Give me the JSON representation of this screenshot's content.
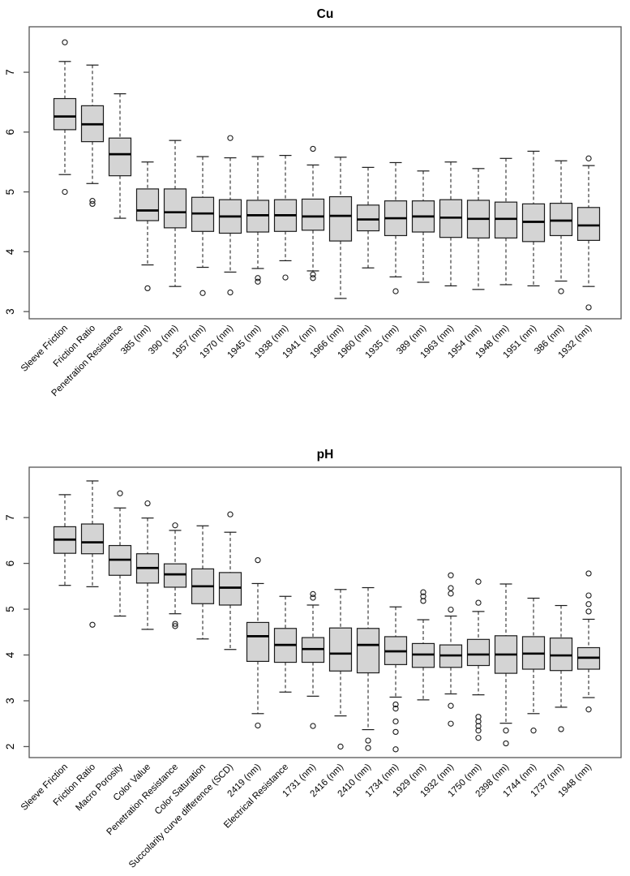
{
  "colors": {
    "background": "#ffffff",
    "box_fill": "#d4d4d4",
    "box_border": "#1c1c1c",
    "median": "#000000",
    "whisker": "#2b2b2b",
    "frame": "#555555",
    "text": "#000000"
  },
  "chart_data": [
    {
      "type": "boxplot",
      "title": "Cu",
      "xlabel": "",
      "ylabel": "",
      "grid": false,
      "legend": null,
      "ylim": [
        2.88,
        7.76
      ],
      "yticks": [
        3,
        4,
        5,
        6,
        7
      ],
      "categories": [
        "Sleeve Friction",
        "Friction Ratio",
        "Penetration Resistance",
        "385 (nm)",
        "390 (nm)",
        "1957 (nm)",
        "1970 (nm)",
        "1945 (nm)",
        "1938 (nm)",
        "1941 (nm)",
        "1966 (nm)",
        "1960 (nm)",
        "1935 (nm)",
        "389 (nm)",
        "1963 (nm)",
        "1954 (nm)",
        "1948 (nm)",
        "1951 (nm)",
        "386 (nm)",
        "1932 (nm)"
      ],
      "boxes": [
        {
          "whislo": 5.29,
          "q1": 6.04,
          "med": 6.26,
          "q3": 6.56,
          "whishi": 7.18,
          "outliers": [
            7.5,
            5.0
          ]
        },
        {
          "whislo": 5.14,
          "q1": 5.84,
          "med": 6.13,
          "q3": 6.44,
          "whishi": 7.12,
          "outliers": [
            4.85,
            4.8
          ]
        },
        {
          "whislo": 4.56,
          "q1": 5.27,
          "med": 5.63,
          "q3": 5.9,
          "whishi": 6.64,
          "outliers": []
        },
        {
          "whislo": 3.78,
          "q1": 4.52,
          "med": 4.69,
          "q3": 5.05,
          "whishi": 5.5,
          "outliers": [
            3.39
          ]
        },
        {
          "whislo": 3.42,
          "q1": 4.4,
          "med": 4.66,
          "q3": 5.05,
          "whishi": 5.86,
          "outliers": []
        },
        {
          "whislo": 3.74,
          "q1": 4.34,
          "med": 4.64,
          "q3": 4.91,
          "whishi": 5.59,
          "outliers": [
            3.31
          ]
        },
        {
          "whislo": 3.66,
          "q1": 4.31,
          "med": 4.59,
          "q3": 4.87,
          "whishi": 5.57,
          "outliers": [
            5.9,
            3.32
          ]
        },
        {
          "whislo": 3.72,
          "q1": 4.33,
          "med": 4.61,
          "q3": 4.86,
          "whishi": 5.59,
          "outliers": [
            3.56,
            3.5
          ]
        },
        {
          "whislo": 3.85,
          "q1": 4.34,
          "med": 4.61,
          "q3": 4.87,
          "whishi": 5.61,
          "outliers": [
            3.57
          ]
        },
        {
          "whislo": 3.68,
          "q1": 4.36,
          "med": 4.59,
          "q3": 4.88,
          "whishi": 5.45,
          "outliers": [
            5.72,
            3.62,
            3.56
          ]
        },
        {
          "whislo": 3.22,
          "q1": 4.18,
          "med": 4.6,
          "q3": 4.92,
          "whishi": 5.58,
          "outliers": []
        },
        {
          "whislo": 3.73,
          "q1": 4.35,
          "med": 4.54,
          "q3": 4.78,
          "whishi": 5.41,
          "outliers": []
        },
        {
          "whislo": 3.58,
          "q1": 4.27,
          "med": 4.56,
          "q3": 4.85,
          "whishi": 5.49,
          "outliers": [
            3.34
          ]
        },
        {
          "whislo": 3.49,
          "q1": 4.33,
          "med": 4.59,
          "q3": 4.85,
          "whishi": 5.35,
          "outliers": []
        },
        {
          "whislo": 3.43,
          "q1": 4.24,
          "med": 4.57,
          "q3": 4.87,
          "whishi": 5.5,
          "outliers": []
        },
        {
          "whislo": 3.37,
          "q1": 4.23,
          "med": 4.55,
          "q3": 4.86,
          "whishi": 5.39,
          "outliers": []
        },
        {
          "whislo": 3.45,
          "q1": 4.23,
          "med": 4.55,
          "q3": 4.83,
          "whishi": 5.56,
          "outliers": []
        },
        {
          "whislo": 3.43,
          "q1": 4.17,
          "med": 4.5,
          "q3": 4.8,
          "whishi": 5.68,
          "outliers": []
        },
        {
          "whislo": 3.51,
          "q1": 4.27,
          "med": 4.52,
          "q3": 4.81,
          "whishi": 5.52,
          "outliers": [
            3.34
          ]
        },
        {
          "whislo": 3.42,
          "q1": 4.19,
          "med": 4.44,
          "q3": 4.74,
          "whishi": 5.44,
          "outliers": [
            5.56,
            3.07
          ]
        }
      ]
    },
    {
      "type": "boxplot",
      "title": "pH",
      "xlabel": "",
      "ylabel": "",
      "grid": false,
      "legend": null,
      "ylim": [
        1.76,
        8.1
      ],
      "yticks": [
        2,
        3,
        4,
        5,
        6,
        7
      ],
      "categories": [
        "Sleeve Friction",
        "Friction Ratio",
        "Macro Porosity",
        "Color Value",
        "Penetration Resistance",
        "Color Saturation",
        "Succolarity curve difference (SCD)",
        "2419 (nm)",
        "Electrical Resistance",
        "1731 (nm)",
        "2416 (nm)",
        "2410 (nm)",
        "1734 (nm)",
        "1929 (nm)",
        "1932 (nm)",
        "1750 (nm)",
        "2398 (nm)",
        "1744 (nm)",
        "1737 (nm)",
        "1948 (nm)"
      ],
      "boxes": [
        {
          "whislo": 5.52,
          "q1": 6.22,
          "med": 6.52,
          "q3": 6.8,
          "whishi": 7.5,
          "outliers": []
        },
        {
          "whislo": 5.49,
          "q1": 6.21,
          "med": 6.46,
          "q3": 6.86,
          "whishi": 7.8,
          "outliers": [
            4.66
          ]
        },
        {
          "whislo": 4.85,
          "q1": 5.74,
          "med": 6.08,
          "q3": 6.39,
          "whishi": 7.21,
          "outliers": [
            7.53
          ]
        },
        {
          "whislo": 4.56,
          "q1": 5.57,
          "med": 5.9,
          "q3": 6.21,
          "whishi": 6.99,
          "outliers": [
            7.31
          ]
        },
        {
          "whislo": 4.9,
          "q1": 5.48,
          "med": 5.76,
          "q3": 5.99,
          "whishi": 6.72,
          "outliers": [
            6.83,
            4.68,
            4.63
          ]
        },
        {
          "whislo": 4.35,
          "q1": 5.12,
          "med": 5.5,
          "q3": 5.88,
          "whishi": 6.82,
          "outliers": []
        },
        {
          "whislo": 4.12,
          "q1": 5.09,
          "med": 5.47,
          "q3": 5.8,
          "whishi": 6.68,
          "outliers": [
            7.07
          ]
        },
        {
          "whislo": 2.72,
          "q1": 3.86,
          "med": 4.41,
          "q3": 4.71,
          "whishi": 5.56,
          "outliers": [
            6.07,
            2.46
          ]
        },
        {
          "whislo": 3.19,
          "q1": 3.84,
          "med": 4.22,
          "q3": 4.58,
          "whishi": 5.28,
          "outliers": []
        },
        {
          "whislo": 3.1,
          "q1": 3.84,
          "med": 4.13,
          "q3": 4.38,
          "whishi": 5.09,
          "outliers": [
            5.33,
            5.25,
            2.45
          ]
        },
        {
          "whislo": 2.67,
          "q1": 3.65,
          "med": 4.03,
          "q3": 4.59,
          "whishi": 5.43,
          "outliers": [
            2.0
          ]
        },
        {
          "whislo": 2.37,
          "q1": 3.61,
          "med": 4.22,
          "q3": 4.58,
          "whishi": 5.47,
          "outliers": [
            2.13,
            1.97
          ]
        },
        {
          "whislo": 3.08,
          "q1": 3.79,
          "med": 4.08,
          "q3": 4.4,
          "whishi": 5.05,
          "outliers": [
            2.92,
            2.83,
            2.55,
            2.32,
            1.94
          ]
        },
        {
          "whislo": 3.02,
          "q1": 3.73,
          "med": 4.01,
          "q3": 4.25,
          "whishi": 4.77,
          "outliers": [
            5.37,
            5.28,
            5.18
          ]
        },
        {
          "whislo": 3.15,
          "q1": 3.73,
          "med": 3.99,
          "q3": 4.22,
          "whishi": 4.85,
          "outliers": [
            5.74,
            5.46,
            5.34,
            4.99,
            2.89,
            2.5
          ]
        },
        {
          "whislo": 3.13,
          "q1": 3.77,
          "med": 4.01,
          "q3": 4.34,
          "whishi": 4.95,
          "outliers": [
            5.6,
            5.14,
            2.65,
            2.55,
            2.45,
            2.35,
            2.19
          ]
        },
        {
          "whislo": 2.51,
          "q1": 3.6,
          "med": 4.01,
          "q3": 4.42,
          "whishi": 5.55,
          "outliers": [
            2.35,
            2.07
          ]
        },
        {
          "whislo": 2.72,
          "q1": 3.69,
          "med": 4.03,
          "q3": 4.4,
          "whishi": 5.24,
          "outliers": [
            2.35
          ]
        },
        {
          "whislo": 2.86,
          "q1": 3.66,
          "med": 3.99,
          "q3": 4.37,
          "whishi": 5.08,
          "outliers": [
            2.38
          ]
        },
        {
          "whislo": 3.07,
          "q1": 3.69,
          "med": 3.94,
          "q3": 4.16,
          "whishi": 4.78,
          "outliers": [
            5.78,
            5.3,
            5.11,
            4.95,
            2.81
          ]
        }
      ]
    }
  ]
}
